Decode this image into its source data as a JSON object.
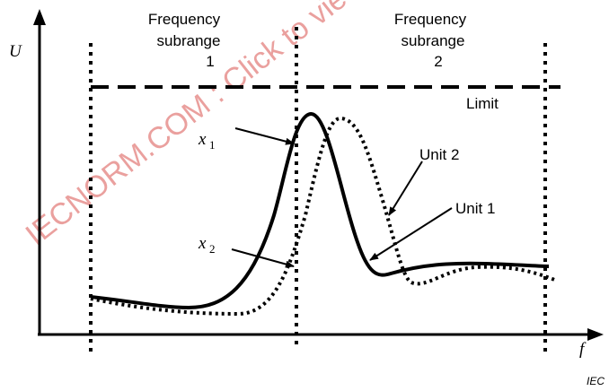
{
  "axes": {
    "y_label": "U",
    "x_label": "f"
  },
  "subranges": [
    {
      "line1": "Frequency",
      "line2": "subrange",
      "line3": "1"
    },
    {
      "line1": "Frequency",
      "line2": "subrange",
      "line3": "2"
    }
  ],
  "limit_label": "Limit",
  "curve_labels": {
    "unit1": "Unit 1",
    "unit2": "Unit 2"
  },
  "points": [
    {
      "base": "x",
      "sub": "1"
    },
    {
      "base": "x",
      "sub": "2"
    }
  ],
  "watermark": "IECNORM.COM : Click to view the full PDF",
  "credit": "IEC"
}
